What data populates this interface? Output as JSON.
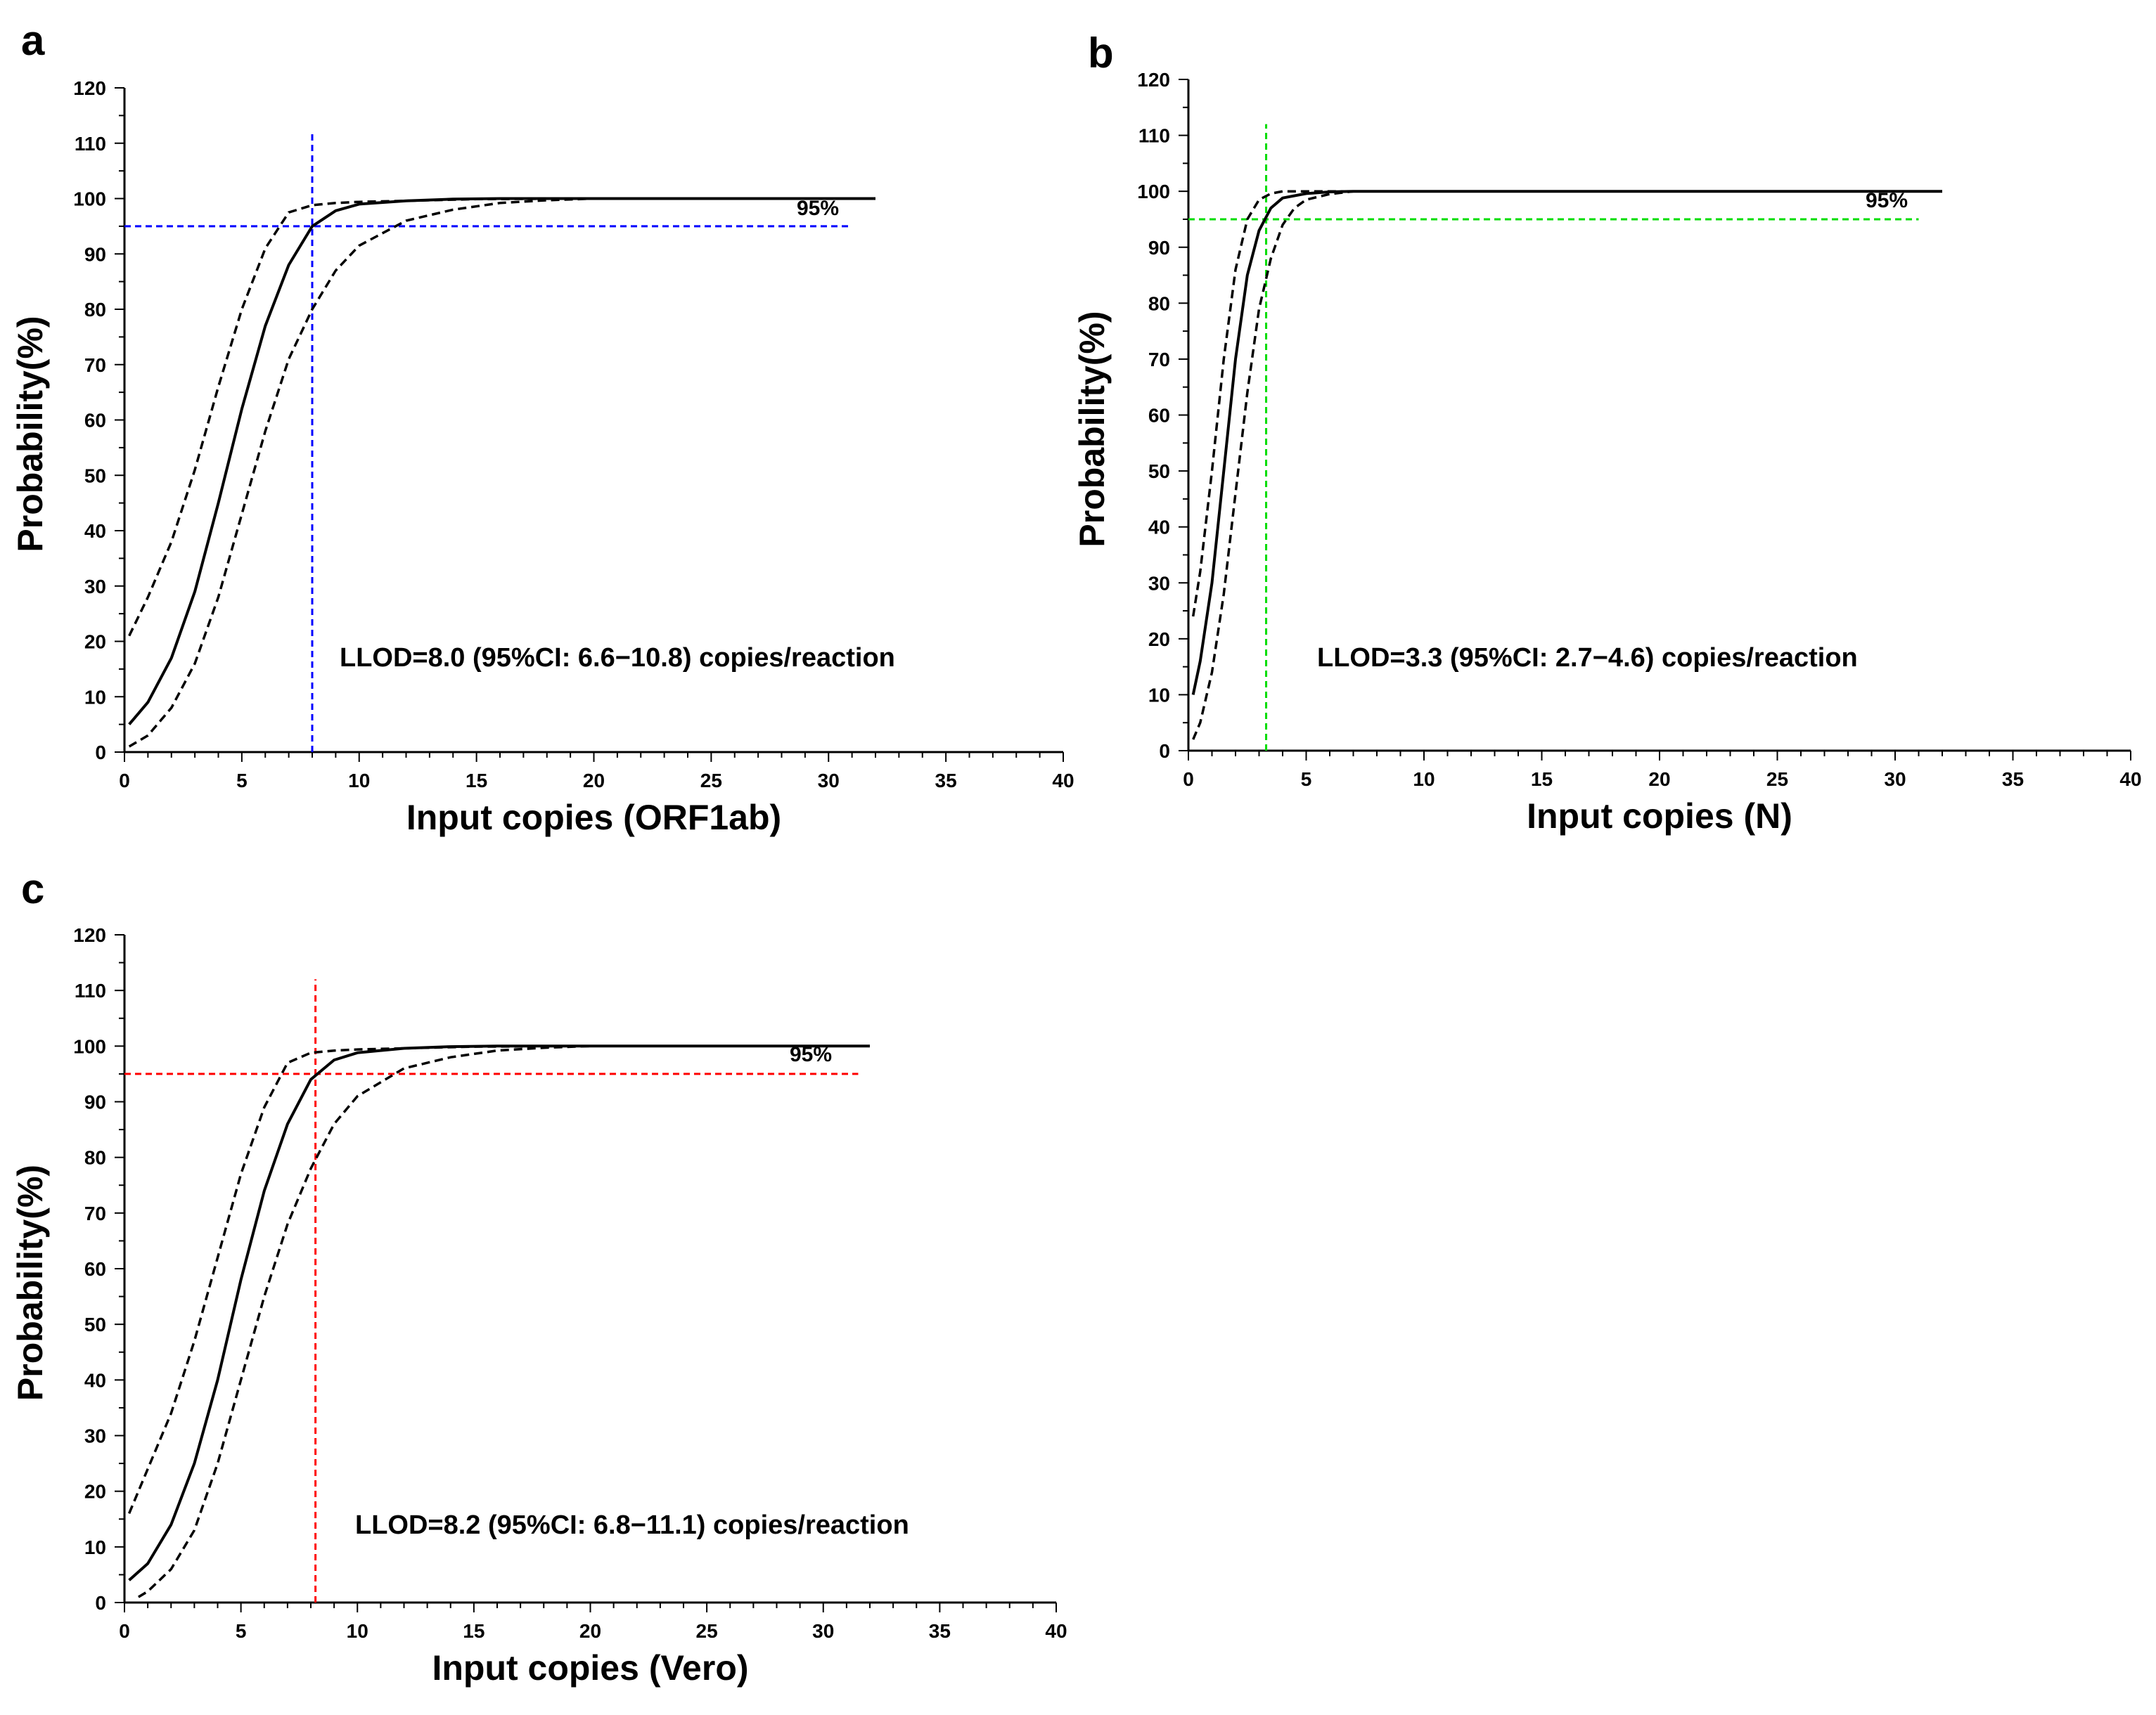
{
  "chart_data": [
    {
      "panel": "a",
      "type": "line",
      "xlabel": "Input copies (ORF1ab)",
      "ylabel": "Probability(%)",
      "xlim": [
        0,
        40
      ],
      "ylim": [
        0,
        120
      ],
      "xticks": [
        0,
        5,
        10,
        15,
        20,
        25,
        30,
        35,
        40
      ],
      "yticks": [
        0,
        10,
        20,
        30,
        40,
        50,
        60,
        70,
        80,
        90,
        100,
        110,
        120
      ],
      "threshold_label": "95%",
      "threshold_y": 95,
      "threshold_x": 8.0,
      "threshold_color": "#0000ff",
      "threshold_x_end": 31,
      "annotation": "LLOD=8.0 (95%CI: 6.6−10.8) copies/reaction",
      "series": [
        {
          "name": "fit",
          "style": "solid",
          "x": [
            0.2,
            1,
            2,
            3,
            4,
            5,
            6,
            7,
            8,
            9,
            10,
            12,
            14,
            16,
            20,
            25,
            32
          ],
          "y": [
            5,
            9,
            17,
            29,
            45,
            62,
            77,
            88,
            95,
            97.8,
            99,
            99.6,
            99.9,
            100,
            100,
            100,
            100
          ]
        },
        {
          "name": "upper-ci",
          "style": "dashed",
          "x": [
            0.2,
            1,
            2,
            3,
            4,
            5,
            6,
            7,
            8,
            9,
            10,
            12,
            15,
            20,
            25,
            32
          ],
          "y": [
            21,
            28,
            38,
            51,
            66,
            80,
            91,
            97.5,
            98.8,
            99.2,
            99.4,
            99.6,
            99.9,
            100,
            100,
            100
          ]
        },
        {
          "name": "lower-ci",
          "style": "dashed",
          "x": [
            0.2,
            1,
            2,
            3,
            4,
            5,
            6,
            7,
            8,
            9,
            10,
            12,
            14,
            16,
            18,
            20,
            25,
            32
          ],
          "y": [
            1,
            3,
            8,
            16,
            28,
            43,
            58,
            71,
            80,
            87,
            91.5,
            96,
            98,
            99.2,
            99.7,
            100,
            100,
            100
          ]
        }
      ]
    },
    {
      "panel": "b",
      "type": "line",
      "xlabel": "Input copies (N)",
      "ylabel": "Probability(%)",
      "xlim": [
        0,
        40
      ],
      "ylim": [
        0,
        120
      ],
      "xticks": [
        0,
        5,
        10,
        15,
        20,
        25,
        30,
        35,
        40
      ],
      "yticks": [
        0,
        10,
        20,
        30,
        40,
        50,
        60,
        70,
        80,
        90,
        100,
        110,
        120
      ],
      "threshold_label": "95%",
      "threshold_y": 95,
      "threshold_x": 3.3,
      "threshold_color": "#00dd00",
      "threshold_x_end": 31,
      "annotation": "LLOD=3.3 (95%CI: 2.7−4.6) copies/reaction",
      "series": [
        {
          "name": "fit",
          "style": "solid",
          "x": [
            0.2,
            0.5,
            1,
            1.5,
            2,
            2.5,
            3,
            3.5,
            4,
            5,
            6,
            7,
            10,
            20,
            32
          ],
          "y": [
            10,
            16,
            30,
            50,
            70,
            85,
            93,
            97,
            98.8,
            99.6,
            99.9,
            100,
            100,
            100,
            100
          ]
        },
        {
          "name": "upper-ci",
          "style": "dashed",
          "x": [
            0.2,
            0.5,
            1,
            1.5,
            2,
            2.5,
            3,
            3.5,
            4,
            5,
            6,
            10,
            20,
            32
          ],
          "y": [
            24,
            32,
            50,
            70,
            86,
            95,
            98.5,
            99.6,
            100,
            100,
            100,
            100,
            100,
            100
          ]
        },
        {
          "name": "lower-ci",
          "style": "dashed",
          "x": [
            0.2,
            0.5,
            1,
            1.5,
            2,
            2.5,
            3,
            3.5,
            4,
            4.5,
            5,
            6,
            7,
            10,
            20,
            32
          ],
          "y": [
            2,
            5,
            14,
            28,
            46,
            64,
            79,
            88,
            94,
            97,
            98.5,
            99.5,
            100,
            100,
            100,
            100
          ]
        }
      ]
    },
    {
      "panel": "c",
      "type": "line",
      "xlabel": "Input copies (Vero)",
      "ylabel": "Probability(%)",
      "xlim": [
        0,
        40
      ],
      "ylim": [
        0,
        120
      ],
      "xticks": [
        0,
        5,
        10,
        15,
        20,
        25,
        30,
        35,
        40
      ],
      "yticks": [
        0,
        10,
        20,
        30,
        40,
        50,
        60,
        70,
        80,
        90,
        100,
        110,
        120
      ],
      "threshold_label": "95%",
      "threshold_y": 95,
      "threshold_x": 8.2,
      "threshold_color": "#ff0000",
      "threshold_x_end": 31.5,
      "annotation": "LLOD=8.2 (95%CI: 6.8−11.1) copies/reaction",
      "series": [
        {
          "name": "fit",
          "style": "solid",
          "x": [
            0.2,
            1,
            2,
            3,
            4,
            5,
            6,
            7,
            8,
            9,
            10,
            12,
            14,
            16,
            20,
            25,
            32
          ],
          "y": [
            4,
            7,
            14,
            25,
            40,
            58,
            74,
            86,
            94,
            97.5,
            98.8,
            99.6,
            99.9,
            100,
            100,
            100,
            100
          ]
        },
        {
          "name": "upper-ci",
          "style": "dashed",
          "x": [
            0.2,
            1,
            2,
            3,
            4,
            5,
            6,
            7,
            8,
            9,
            10,
            12,
            15,
            20,
            25,
            32
          ],
          "y": [
            16,
            24,
            34,
            47,
            62,
            77,
            89,
            97,
            98.8,
            99.2,
            99.4,
            99.6,
            99.9,
            100,
            100,
            100
          ]
        },
        {
          "name": "lower-ci",
          "style": "dashed",
          "x": [
            0.6,
            1,
            2,
            3,
            4,
            5,
            6,
            7,
            8,
            9,
            10,
            12,
            14,
            16,
            18,
            20,
            25,
            32
          ],
          "y": [
            1,
            2,
            6,
            13,
            25,
            40,
            55,
            68,
            78,
            86,
            91,
            96,
            98,
            99.2,
            99.7,
            100,
            100,
            100
          ]
        }
      ]
    }
  ]
}
